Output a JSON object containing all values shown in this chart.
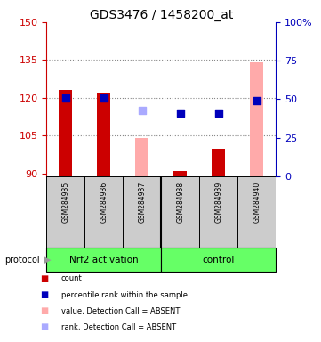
{
  "title": "GDS3476 / 1458200_at",
  "samples": [
    "GSM284935",
    "GSM284936",
    "GSM284937",
    "GSM284938",
    "GSM284939",
    "GSM284940"
  ],
  "group_labels": [
    "Nrf2 activation",
    "control"
  ],
  "group_color": "#66ff66",
  "bar_bottom": 89,
  "ylim_left": [
    89,
    150
  ],
  "ylim_right": [
    0,
    100
  ],
  "yticks_left": [
    90,
    105,
    120,
    135,
    150
  ],
  "yticks_right": [
    0,
    25,
    50,
    75,
    100
  ],
  "ytick_right_labels": [
    "0",
    "25",
    "50",
    "75",
    "100%"
  ],
  "hgrid_lines": [
    105,
    120,
    135
  ],
  "count_values": [
    123,
    122,
    null,
    91,
    100,
    null
  ],
  "count_color": "#cc0000",
  "count_absent_color": "#ffaaaa",
  "count_absent_values": [
    null,
    null,
    104,
    null,
    null,
    134
  ],
  "rank_values": [
    120,
    120,
    null,
    114,
    114,
    119
  ],
  "rank_color": "#0000bb",
  "rank_absent_values": [
    null,
    null,
    115,
    null,
    null,
    null
  ],
  "rank_absent_color": "#aaaaff",
  "legend_items": [
    {
      "label": "count",
      "color": "#cc0000"
    },
    {
      "label": "percentile rank within the sample",
      "color": "#0000bb"
    },
    {
      "label": "value, Detection Call = ABSENT",
      "color": "#ffaaaa"
    },
    {
      "label": "rank, Detection Call = ABSENT",
      "color": "#aaaaff"
    }
  ],
  "bar_width": 0.35,
  "dot_size": 30,
  "protocol_label": "protocol",
  "left_axis_color": "#cc0000",
  "right_axis_color": "#0000bb",
  "grid_color": "#888888",
  "label_bg_color": "#cccccc",
  "ngroup1": 3,
  "ngroup2": 3
}
